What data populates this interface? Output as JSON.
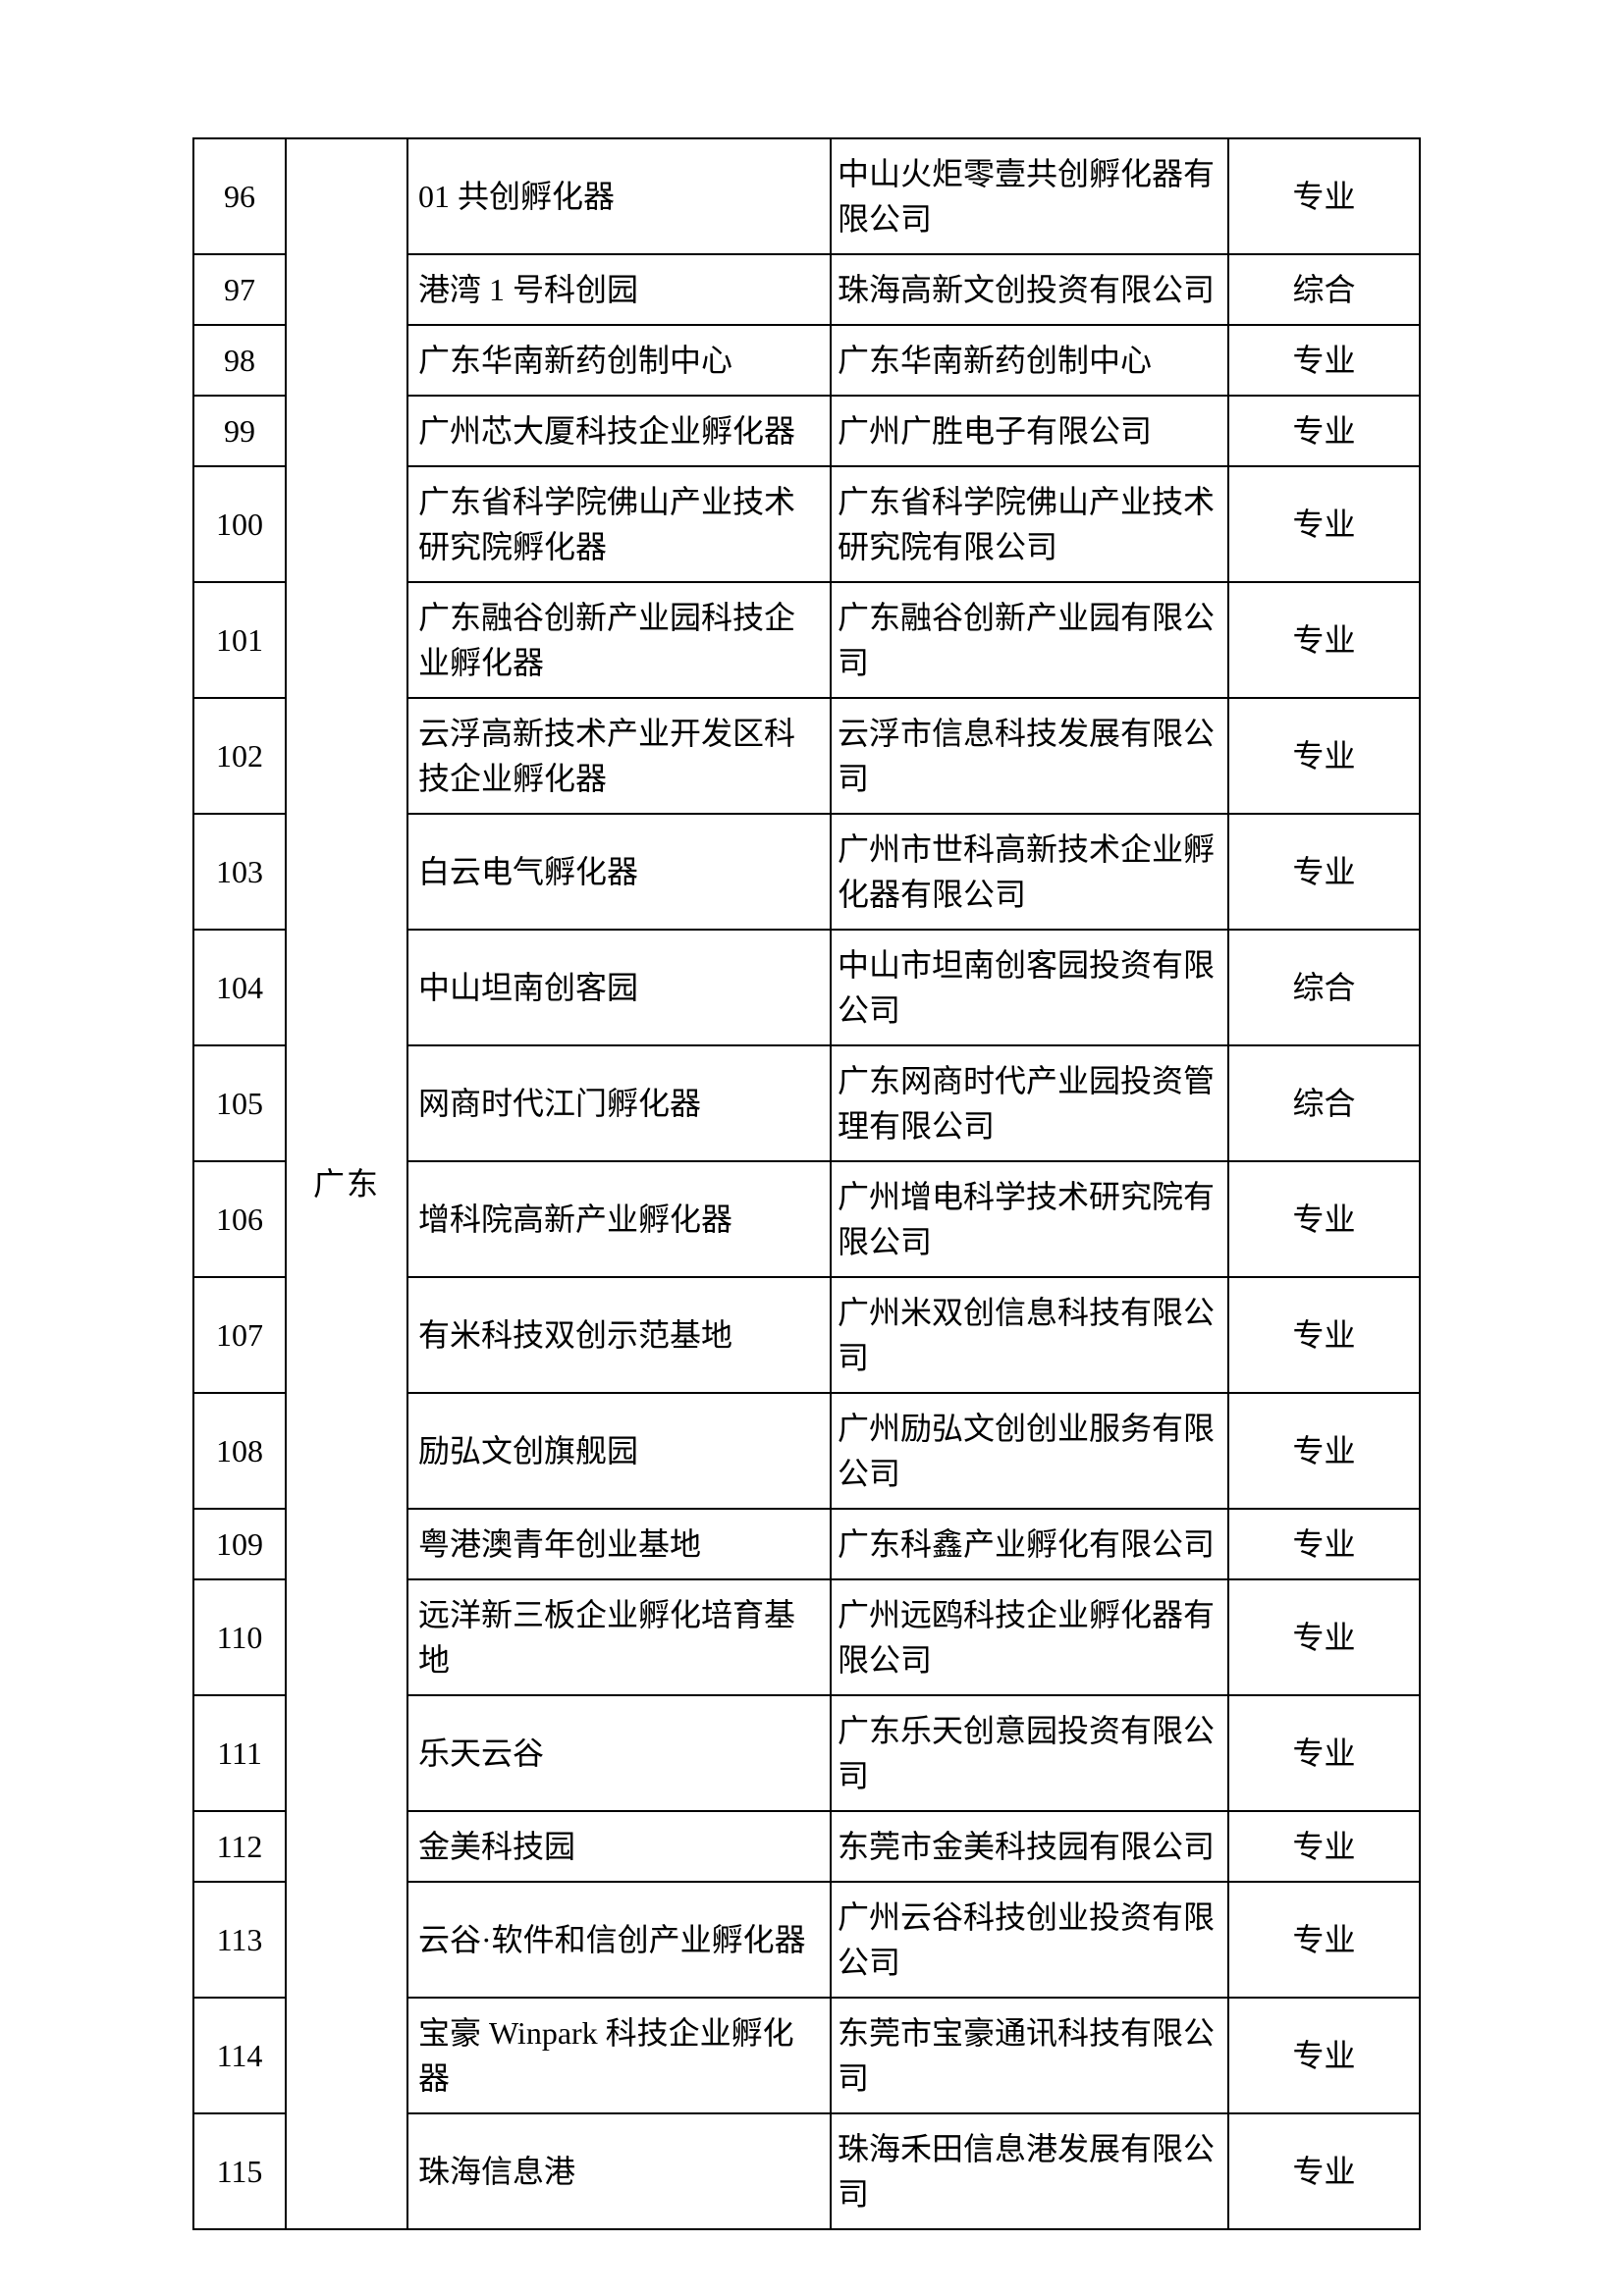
{
  "colors": {
    "border": "#000000",
    "text": "#000000",
    "background": "#ffffff"
  },
  "table": {
    "region_label": "广东",
    "rows": [
      {
        "no": "96",
        "name": "01 共创孵化器",
        "company": "中山火炬零壹共创孵化器有限公司",
        "category": "专业"
      },
      {
        "no": "97",
        "name": "港湾 1 号科创园",
        "company": "珠海高新文创投资有限公司",
        "category": "综合"
      },
      {
        "no": "98",
        "name": "广东华南新药创制中心",
        "company": "广东华南新药创制中心",
        "category": "专业"
      },
      {
        "no": "99",
        "name": "广州芯大厦科技企业孵化器",
        "company": "广州广胜电子有限公司",
        "category": "专业"
      },
      {
        "no": "100",
        "name": "广东省科学院佛山产业技术研究院孵化器",
        "company": "广东省科学院佛山产业技术研究院有限公司",
        "category": "专业"
      },
      {
        "no": "101",
        "name": "广东融谷创新产业园科技企业孵化器",
        "company": "广东融谷创新产业园有限公司",
        "category": "专业"
      },
      {
        "no": "102",
        "name": "云浮高新技术产业开发区科技企业孵化器",
        "company": "云浮市信息科技发展有限公司",
        "category": "专业"
      },
      {
        "no": "103",
        "name": "白云电气孵化器",
        "company": "广州市世科高新技术企业孵化器有限公司",
        "category": "专业"
      },
      {
        "no": "104",
        "name": "中山坦南创客园",
        "company": "中山市坦南创客园投资有限公司",
        "category": "综合"
      },
      {
        "no": "105",
        "name": "网商时代江门孵化器",
        "company": "广东网商时代产业园投资管理有限公司",
        "category": "综合"
      },
      {
        "no": "106",
        "name": "增科院高新产业孵化器",
        "company": "广州增电科学技术研究院有限公司",
        "category": "专业"
      },
      {
        "no": "107",
        "name": "有米科技双创示范基地",
        "company": "广州米双创信息科技有限公司",
        "category": "专业"
      },
      {
        "no": "108",
        "name": "励弘文创旗舰园",
        "company": "广州励弘文创创业服务有限公司",
        "category": "专业"
      },
      {
        "no": "109",
        "name": "粤港澳青年创业基地",
        "company": "广东科鑫产业孵化有限公司",
        "category": "专业"
      },
      {
        "no": "110",
        "name": "远洋新三板企业孵化培育基地",
        "company": "广州远鸥科技企业孵化器有限公司",
        "category": "专业"
      },
      {
        "no": "111",
        "name": "乐天云谷",
        "company": "广东乐天创意园投资有限公司",
        "category": "专业"
      },
      {
        "no": "112",
        "name": "金美科技园",
        "company": "东莞市金美科技园有限公司",
        "category": "专业"
      },
      {
        "no": "113",
        "name": "云谷·软件和信创产业孵化器",
        "company": "广州云谷科技创业投资有限公司",
        "category": "专业"
      },
      {
        "no": "114",
        "name": "宝豪 Winpark 科技企业孵化器",
        "company": "东莞市宝豪通讯科技有限公司",
        "category": "专业"
      },
      {
        "no": "115",
        "name": "珠海信息港",
        "company": "珠海禾田信息港发展有限公司",
        "category": "专业"
      }
    ]
  }
}
